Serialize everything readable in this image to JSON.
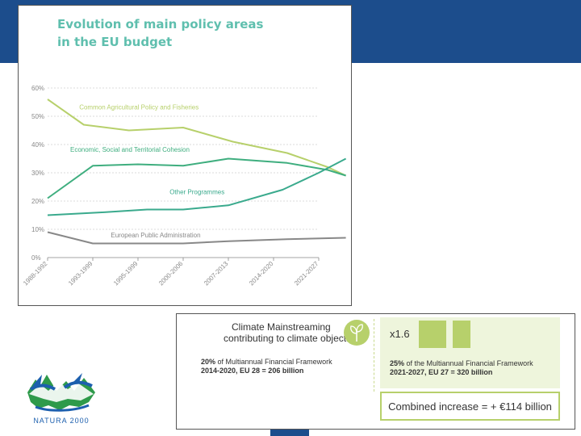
{
  "colors": {
    "header": "#1c4d8c",
    "title": "#5fbfae",
    "cap": "#b7d06b",
    "cohesion": "#3fae7f",
    "other": "#3aaa8d",
    "admin": "#888888",
    "accent": "#b7d06b"
  },
  "chart_data": {
    "type": "line",
    "title": [
      "Evolution of main policy areas",
      "in the EU budget"
    ],
    "categories": [
      "1988-1992",
      "1993-1999",
      "1995-1999",
      "2000-2006",
      "2007-2013",
      "2014-2020",
      "2021-2027"
    ],
    "ylim": [
      0,
      60
    ],
    "yticks": [
      "0%",
      "10%",
      "20%",
      "30%",
      "40%",
      "50%",
      "60%"
    ],
    "series": [
      {
        "name": "Common Agricultural Policy and Fisheries",
        "colorKey": "cap",
        "x": [
          0,
          0.8,
          1.8,
          3.0,
          4.1,
          5.3,
          6.2,
          6.6
        ],
        "values": [
          56,
          47,
          45,
          46,
          41,
          37,
          32,
          29
        ]
      },
      {
        "name": "Economic, Social and Territorial Cohesion",
        "colorKey": "cohesion",
        "x": [
          0,
          1.0,
          2.0,
          3.0,
          4.0,
          5.3,
          6.2,
          6.6
        ],
        "values": [
          21,
          32.5,
          33,
          32.5,
          35,
          33.5,
          31,
          29
        ]
      },
      {
        "name": "Other Programmes",
        "colorKey": "other",
        "x": [
          0,
          1.2,
          2.2,
          3.0,
          4.0,
          5.2,
          6.0,
          6.6
        ],
        "values": [
          15,
          16,
          17,
          17,
          18.5,
          24,
          30,
          35
        ]
      },
      {
        "name": "European Public Administration",
        "colorKey": "admin",
        "x": [
          0,
          0.5,
          1.0,
          2.0,
          3.0,
          4.0,
          5.3,
          6.6
        ],
        "values": [
          9,
          7,
          5,
          5,
          5,
          5.8,
          6.5,
          7
        ]
      }
    ],
    "labels": [
      {
        "text": "Common Agricultural Policy and Fisheries",
        "x": 0.7,
        "y": 52.5,
        "colorKey": "cap"
      },
      {
        "text": "Economic, Social and Territorial Cohesion",
        "x": 0.5,
        "y": 37.5,
        "colorKey": "cohesion"
      },
      {
        "text": "Other Programmes",
        "x": 2.7,
        "y": 22.5,
        "colorKey": "other"
      },
      {
        "text": "European Public Administration",
        "x": 1.4,
        "y": 7.2,
        "colorKey": "admin"
      }
    ]
  },
  "climate": {
    "title": "Climate Mainstreaming",
    "subtitle": "contributing to climate objectives",
    "left_pct": "20%",
    "left_line1": " of Multiannual Financial Framework",
    "left_line2": "2014-2020, EU 28 = 206 billion",
    "multiplier": "x1.6",
    "right_pct": "25%",
    "right_line1": " of the Multiannual Financial Framework",
    "right_line2": "2021-2027, EU 27 = 320 billion",
    "combined": "Combined increase = + €114 billion"
  },
  "logo": {
    "text": "NATURA 2000"
  }
}
